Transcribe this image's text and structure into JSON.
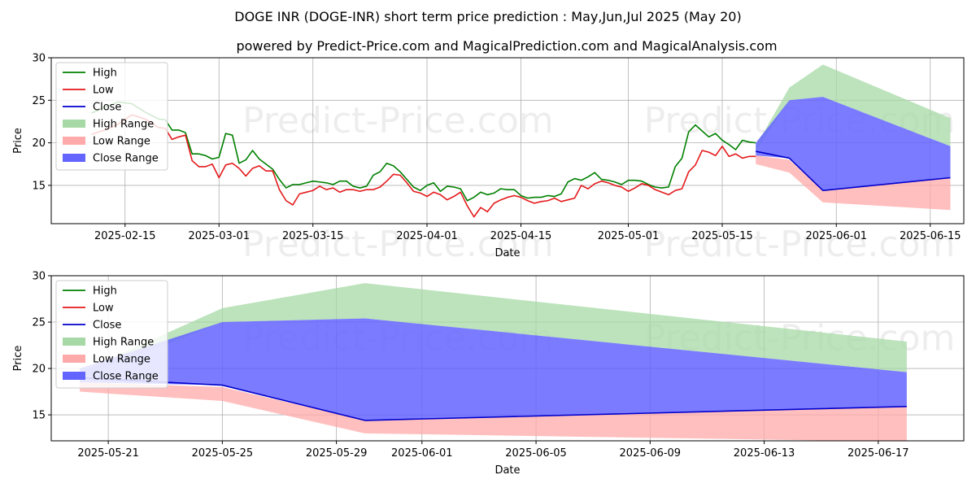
{
  "title": "DOGE INR (DOGE-INR) short term price prediction : May,Jun,Jul 2025 (May 20)",
  "subtitle": "powered by Predict-Price.com and MagicalPrediction.com and MagicalAnalysis.com",
  "watermark": "Predict-Price.com",
  "colors": {
    "high": "#008000",
    "low": "#e41a1c",
    "close": "#0000cc",
    "high_range": "#a6d9a6",
    "low_range": "#ffaaaa",
    "close_range": "#6464ff"
  },
  "chart_data": [
    {
      "type": "line",
      "xlabel": "Date",
      "ylabel": "Price",
      "xlim": [
        "2025-02-04",
        "2025-06-20"
      ],
      "ylim": [
        10.5,
        30
      ],
      "yticks": [
        15,
        20,
        25,
        30
      ],
      "xticks": [
        "2025-02-15",
        "2025-03-01",
        "2025-03-15",
        "2025-04-01",
        "2025-04-15",
        "2025-05-01",
        "2025-05-15",
        "2025-06-01",
        "2025-06-15"
      ],
      "grid": true,
      "legend": "top-left",
      "legend_entries": [
        "High",
        "Low",
        "Close",
        "High Range",
        "Low Range",
        "Close Range"
      ],
      "history": {
        "dates": [
          "2025-02-10",
          "2025-02-12",
          "2025-02-14",
          "2025-02-16",
          "2025-02-18",
          "2025-02-20",
          "2025-02-21",
          "2025-02-22",
          "2025-02-23",
          "2025-02-24",
          "2025-02-25",
          "2025-02-26",
          "2025-02-27",
          "2025-02-28",
          "2025-03-01",
          "2025-03-02",
          "2025-03-03",
          "2025-03-04",
          "2025-03-05",
          "2025-03-06",
          "2025-03-07",
          "2025-03-08",
          "2025-03-09",
          "2025-03-10",
          "2025-03-11",
          "2025-03-12",
          "2025-03-13",
          "2025-03-14",
          "2025-03-15",
          "2025-03-16",
          "2025-03-17",
          "2025-03-18",
          "2025-03-19",
          "2025-03-20",
          "2025-03-21",
          "2025-03-22",
          "2025-03-23",
          "2025-03-24",
          "2025-03-25",
          "2025-03-26",
          "2025-03-27",
          "2025-03-28",
          "2025-03-29",
          "2025-03-30",
          "2025-03-31",
          "2025-04-01",
          "2025-04-02",
          "2025-04-03",
          "2025-04-04",
          "2025-04-05",
          "2025-04-06",
          "2025-04-07",
          "2025-04-08",
          "2025-04-09",
          "2025-04-10",
          "2025-04-11",
          "2025-04-12",
          "2025-04-13",
          "2025-04-14",
          "2025-04-15",
          "2025-04-16",
          "2025-04-17",
          "2025-04-18",
          "2025-04-19",
          "2025-04-20",
          "2025-04-21",
          "2025-04-22",
          "2025-04-23",
          "2025-04-24",
          "2025-04-25",
          "2025-04-26",
          "2025-04-27",
          "2025-04-28",
          "2025-04-29",
          "2025-04-30",
          "2025-05-01",
          "2025-05-02",
          "2025-05-03",
          "2025-05-04",
          "2025-05-05",
          "2025-05-06",
          "2025-05-07",
          "2025-05-08",
          "2025-05-09",
          "2025-05-10",
          "2025-05-11",
          "2025-05-12",
          "2025-05-13",
          "2025-05-14",
          "2025-05-15",
          "2025-05-16",
          "2025-05-17",
          "2025-05-18",
          "2025-05-19",
          "2025-05-20"
        ],
        "high": [
          23.5,
          24.2,
          24.8,
          24.6,
          23.6,
          22.8,
          22.7,
          21.5,
          21.5,
          21.2,
          18.7,
          18.7,
          18.5,
          18.1,
          18.3,
          21.1,
          20.9,
          17.6,
          18.0,
          19.1,
          18.1,
          17.5,
          16.9,
          15.7,
          14.7,
          15.1,
          15.1,
          15.3,
          15.5,
          15.4,
          15.3,
          15.1,
          15.5,
          15.5,
          14.9,
          14.7,
          14.9,
          16.2,
          16.6,
          17.6,
          17.3,
          16.6,
          15.7,
          14.8,
          14.4,
          15.0,
          15.3,
          14.3,
          14.9,
          14.8,
          14.6,
          13.2,
          13.6,
          14.2,
          13.9,
          14.1,
          14.6,
          14.5,
          14.5,
          13.8,
          13.5,
          13.6,
          13.6,
          13.8,
          13.7,
          14.0,
          15.4,
          15.8,
          15.6,
          16.0,
          16.5,
          15.7,
          15.6,
          15.4,
          15.1,
          15.6,
          15.6,
          15.5,
          15.1,
          14.8,
          14.7,
          14.8,
          17.2,
          18.2,
          21.3,
          22.1,
          21.4,
          20.7,
          21.1,
          20.3,
          19.8,
          19.2,
          20.3,
          20.1,
          20.0
        ],
        "low": [
          21.0,
          21.5,
          22.2,
          23.3,
          22.8,
          21.8,
          21.7,
          20.4,
          20.7,
          20.9,
          17.9,
          17.2,
          17.2,
          17.5,
          15.9,
          17.4,
          17.6,
          17.0,
          16.1,
          17.0,
          17.3,
          16.7,
          16.7,
          14.5,
          13.2,
          12.7,
          14.0,
          14.2,
          14.4,
          14.9,
          14.5,
          14.7,
          14.2,
          14.5,
          14.5,
          14.3,
          14.5,
          14.5,
          14.8,
          15.5,
          16.3,
          16.2,
          15.3,
          14.3,
          14.1,
          13.7,
          14.2,
          13.9,
          13.3,
          13.7,
          14.2,
          12.6,
          11.3,
          12.4,
          11.9,
          12.9,
          13.3,
          13.6,
          13.8,
          13.6,
          13.2,
          12.9,
          13.1,
          13.2,
          13.5,
          13.1,
          13.3,
          13.5,
          15.0,
          14.6,
          15.2,
          15.5,
          15.3,
          15.0,
          14.8,
          14.3,
          14.7,
          15.2,
          15.0,
          14.5,
          14.2,
          13.9,
          14.4,
          14.6,
          16.6,
          17.4,
          19.1,
          18.9,
          18.5,
          19.6,
          18.4,
          18.7,
          18.2,
          18.4,
          18.4
        ]
      },
      "forecast": {
        "dates": [
          "2025-05-20",
          "2025-05-25",
          "2025-05-30",
          "2025-06-18"
        ],
        "close": [
          19.0,
          18.2,
          14.4,
          15.9
        ],
        "high_range": {
          "upper": [
            19.6,
            26.5,
            29.2,
            22.9
          ],
          "lower": [
            19.0,
            25.0,
            25.4,
            19.6
          ]
        },
        "low_range": {
          "upper": [
            18.5,
            18.0,
            14.4,
            15.9
          ],
          "lower": [
            17.5,
            16.5,
            13.0,
            12.1
          ]
        },
        "close_range": {
          "upper": [
            20.0,
            25.0,
            25.4,
            19.6
          ],
          "lower": [
            18.5,
            18.2,
            14.4,
            15.9
          ]
        }
      }
    },
    {
      "type": "line",
      "xlabel": "Date",
      "ylabel": "Price",
      "xlim": [
        "2025-05-19",
        "2025-06-20"
      ],
      "ylim": [
        12.2,
        30
      ],
      "yticks": [
        15,
        20,
        25,
        30
      ],
      "xticks": [
        "2025-05-21",
        "2025-05-25",
        "2025-05-29",
        "2025-06-01",
        "2025-06-05",
        "2025-06-09",
        "2025-06-13",
        "2025-06-17"
      ],
      "grid": true,
      "legend": "top-left",
      "legend_entries": [
        "High",
        "Low",
        "Close",
        "High Range",
        "Low Range",
        "Close Range"
      ],
      "forecast": {
        "dates": [
          "2025-05-20",
          "2025-05-25",
          "2025-05-30",
          "2025-06-18"
        ],
        "close": [
          19.0,
          18.2,
          14.4,
          15.9
        ],
        "high_range": {
          "upper": [
            19.6,
            26.5,
            29.2,
            22.9
          ],
          "lower": [
            19.0,
            25.0,
            25.4,
            19.6
          ]
        },
        "low_range": {
          "upper": [
            18.5,
            18.0,
            14.4,
            15.9
          ],
          "lower": [
            17.5,
            16.5,
            13.0,
            12.1
          ]
        },
        "close_range": {
          "upper": [
            20.0,
            25.0,
            25.4,
            19.6
          ],
          "lower": [
            18.5,
            18.2,
            14.4,
            15.9
          ]
        }
      }
    }
  ]
}
